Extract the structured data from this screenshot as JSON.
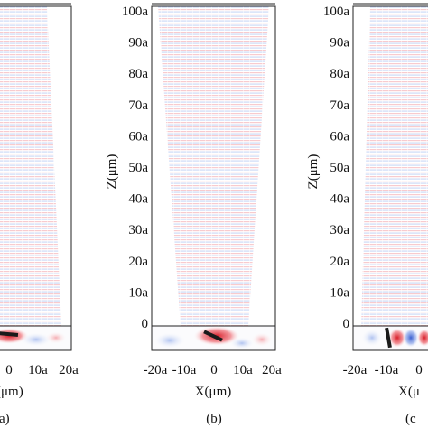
{
  "figure": {
    "panels": [
      {
        "label": "(a)",
        "x_ticks": [
          "0",
          "10a",
          "20a"
        ],
        "x_title": "(μm)",
        "y_ticks": [],
        "y_title": "",
        "source_angle_deg": 5
      },
      {
        "label": "(b)",
        "x_ticks": [
          "-20a",
          "-10a",
          "0",
          "10a",
          "20a"
        ],
        "x_title": "X(μm)",
        "y_ticks": [
          "0",
          "10a",
          "20a",
          "30a",
          "40a",
          "50a",
          "60a",
          "70a",
          "80a",
          "90a",
          "100a"
        ],
        "y_title": "Z(μm)",
        "source_angle_deg": 25
      },
      {
        "label": "(c",
        "x_ticks": [
          "-20a",
          "-10a",
          "0"
        ],
        "x_title": "X(μ",
        "y_ticks": [
          "0",
          "10a",
          "20a",
          "30a",
          "40a",
          "50a",
          "60a",
          "70a",
          "80a",
          "90a",
          "100a"
        ],
        "y_title": "Z(μm)",
        "source_angle_deg": 80
      }
    ],
    "colors": {
      "positive_field": "#e8404a",
      "negative_field": "#3a66d8",
      "source_bar": "#1a1a1a",
      "frame": "#222222"
    }
  }
}
